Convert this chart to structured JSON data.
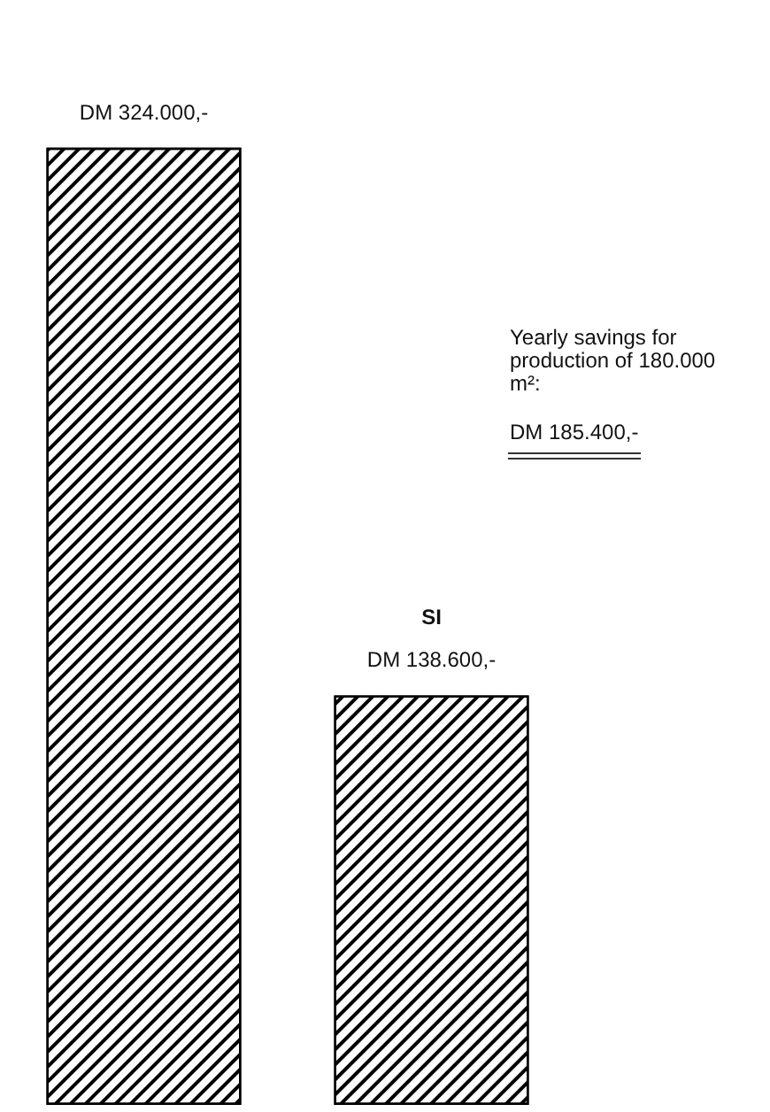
{
  "chart_data": {
    "type": "bar",
    "categories": [
      null,
      "SI"
    ],
    "values": [
      324000,
      138600
    ],
    "value_labels": [
      "DM 324.000,-",
      "DM 138.600,-"
    ],
    "color": "#000000",
    "annotations": [
      "Yearly savings for production of 180.000 m²:",
      "DM 185.400,-"
    ]
  }
}
